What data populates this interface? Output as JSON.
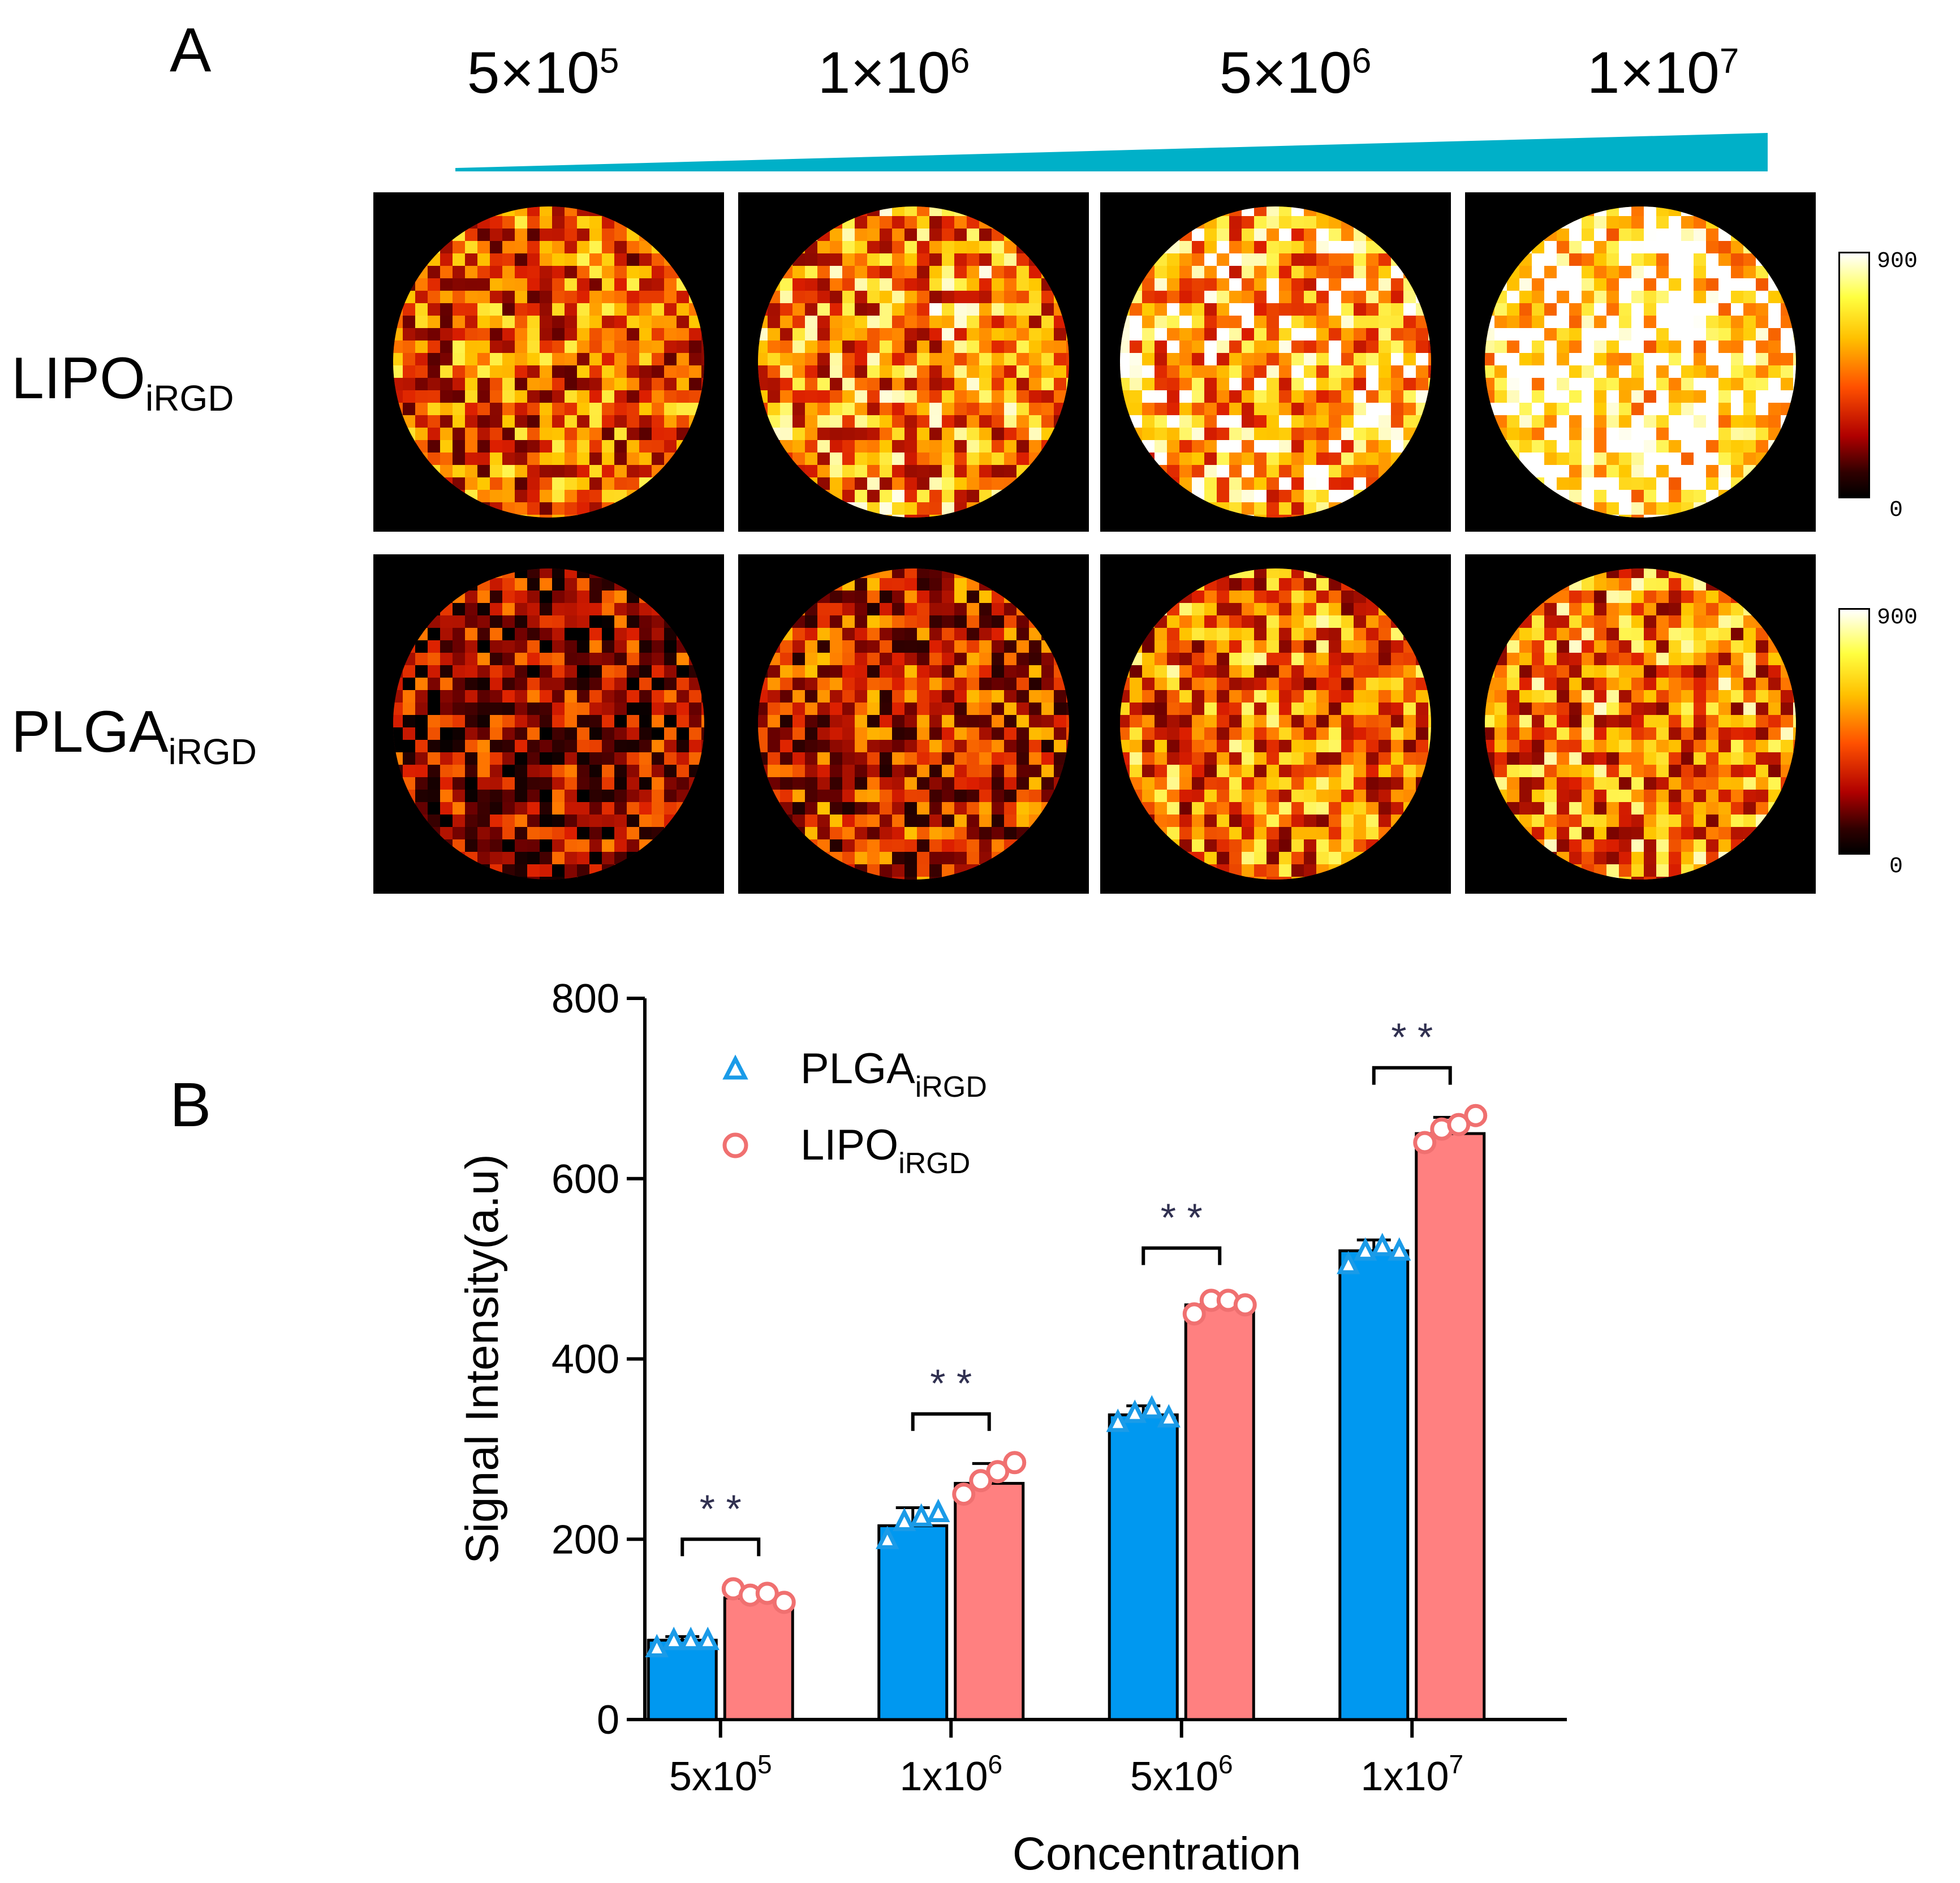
{
  "panel_a": {
    "label": "A",
    "concentrations": [
      {
        "base": "5×10",
        "exp": "5"
      },
      {
        "base": "1×10",
        "exp": "6"
      },
      {
        "base": "5×10",
        "exp": "6"
      },
      {
        "base": "1×10",
        "exp": "7"
      }
    ],
    "rows": [
      {
        "base": "LIPO",
        "sub": "iRGD",
        "brightness": [
          0.55,
          0.65,
          0.75,
          0.9
        ]
      },
      {
        "base": "PLGA",
        "sub": "iRGD",
        "brightness": [
          0.3,
          0.42,
          0.6,
          0.62
        ]
      }
    ],
    "colorbar": {
      "max": "900",
      "min": "0"
    },
    "accent_color": "#00b0c8"
  },
  "panel_b": {
    "label": "B"
  },
  "chart_data": {
    "type": "bar",
    "title": "",
    "xlabel": "Concentration",
    "ylabel": "Signal Intensity(a.u)",
    "ylim": [
      0,
      800
    ],
    "yticks": [
      "0",
      "200",
      "400",
      "600",
      "800"
    ],
    "categories": [
      {
        "base": "5x10",
        "exp": "5"
      },
      {
        "base": "1x10",
        "exp": "6"
      },
      {
        "base": "5x10",
        "exp": "6"
      },
      {
        "base": "1x10",
        "exp": "7"
      }
    ],
    "series": [
      {
        "name_base": "PLGA",
        "name_sub": "iRGD",
        "color": "#0098f0",
        "marker_color": "#1a9be8",
        "marker": "triangle",
        "values": [
          88,
          215,
          338,
          520
        ],
        "errors": [
          4,
          20,
          10,
          12
        ],
        "points": [
          [
            80,
            88,
            88,
            88
          ],
          [
            200,
            220,
            225,
            230
          ],
          [
            330,
            340,
            345,
            335
          ],
          [
            505,
            520,
            525,
            520
          ]
        ]
      },
      {
        "name_base": "LIPO",
        "name_sub": "iRGD",
        "color": "#ff8080",
        "marker_color": "#f07070",
        "marker": "circle",
        "values": [
          135,
          262,
          460,
          650
        ],
        "errors": [
          10,
          22,
          8,
          18
        ],
        "points": [
          [
            145,
            138,
            140,
            130
          ],
          [
            250,
            265,
            275,
            285
          ],
          [
            450,
            465,
            465,
            460
          ],
          [
            640,
            655,
            660,
            670
          ]
        ]
      }
    ],
    "significance": [
      "* *",
      "* *",
      "* *",
      "* *"
    ],
    "legend_position": "top-left",
    "grid": false
  }
}
